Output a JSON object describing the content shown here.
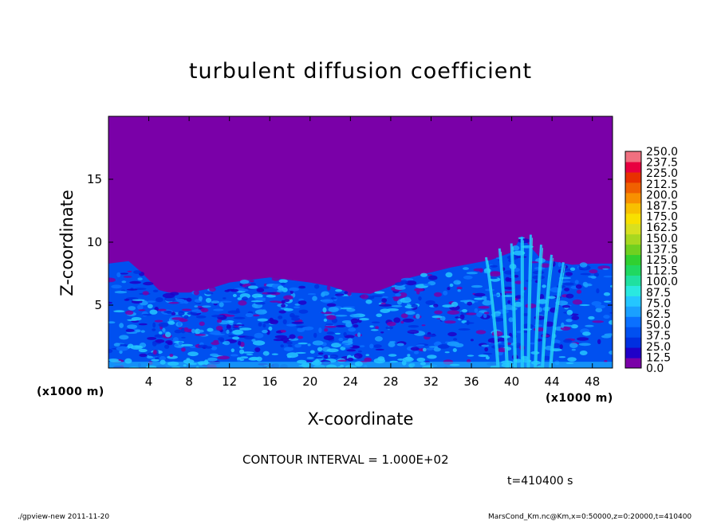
{
  "chart_data": {
    "type": "heatmap",
    "title": "turbulent diffusion coefficient",
    "xlabel": "X-coordinate",
    "ylabel": "Z-coordinate",
    "x_unit_label": "(x1000 m)",
    "y_unit_label": "(x1000 m)",
    "xlim": [
      0,
      50
    ],
    "ylim": [
      0,
      20
    ],
    "x_ticks": [
      4,
      8,
      12,
      16,
      20,
      24,
      28,
      32,
      36,
      40,
      44,
      48
    ],
    "y_ticks": [
      5,
      10,
      15
    ],
    "colorbar": {
      "levels": [
        "0.0",
        "12.5",
        "25.0",
        "37.5",
        "50.0",
        "62.5",
        "75.0",
        "87.5",
        "100.0",
        "112.5",
        "125.0",
        "137.5",
        "150.0",
        "162.5",
        "175.0",
        "187.5",
        "200.0",
        "212.5",
        "225.0",
        "237.5",
        "250.0"
      ],
      "colors": [
        "#7a00a8",
        "#1f00c8",
        "#0030e0",
        "#0050f0",
        "#0a70ff",
        "#1aa0ff",
        "#24c6ff",
        "#2ae8e0",
        "#20e0a0",
        "#20d860",
        "#30d030",
        "#70d020",
        "#a8d820",
        "#d8e020",
        "#f8e000",
        "#f8c000",
        "#f89000",
        "#f06000",
        "#e83000",
        "#e80040",
        "#f07080"
      ]
    },
    "boundary_top_profile": [
      [
        0,
        8.3
      ],
      [
        2,
        8.5
      ],
      [
        3,
        7.8
      ],
      [
        4,
        7.0
      ],
      [
        5,
        6.2
      ],
      [
        6,
        6.0
      ],
      [
        8,
        6.0
      ],
      [
        10,
        6.3
      ],
      [
        12,
        6.8
      ],
      [
        14,
        7.0
      ],
      [
        16,
        7.2
      ],
      [
        18,
        7.0
      ],
      [
        20,
        6.8
      ],
      [
        22,
        6.5
      ],
      [
        24,
        6.0
      ],
      [
        26,
        5.9
      ],
      [
        28,
        6.5
      ],
      [
        30,
        7.2
      ],
      [
        32,
        7.6
      ],
      [
        34,
        8.0
      ],
      [
        36,
        8.3
      ],
      [
        38,
        8.6
      ],
      [
        40,
        9.2
      ],
      [
        41,
        10.5
      ],
      [
        42,
        9.5
      ],
      [
        43,
        8.6
      ],
      [
        44,
        8.5
      ],
      [
        46,
        8.2
      ],
      [
        48,
        8.3
      ],
      [
        50,
        8.3
      ]
    ],
    "background_value": 0.0,
    "description_values": {
      "interior_typical": 37.5,
      "plume_max_region_x": [
        38,
        44
      ]
    }
  },
  "contour_text": "CONTOUR INTERVAL = 1.000E+02",
  "time_text": "t=410400 s",
  "footer_left": "./gpview-new   2011-11-20",
  "footer_right": "MarsCond_Km.nc@Km,x=0:50000,z=0:20000,t=410400"
}
